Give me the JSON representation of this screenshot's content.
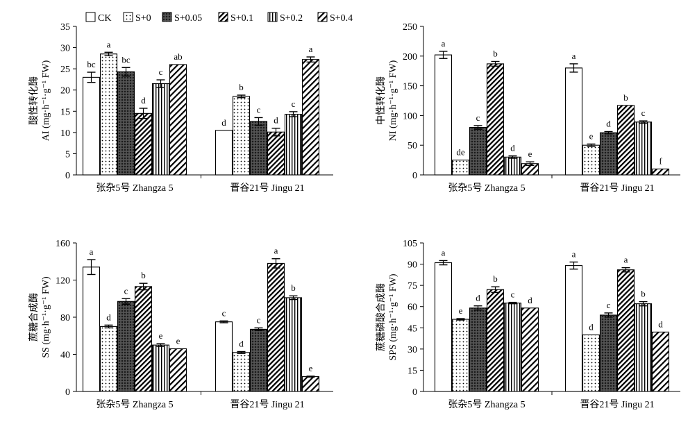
{
  "colors": {
    "ink": "#000000",
    "background": "#ffffff"
  },
  "legend": [
    {
      "label": "CK",
      "pattern": "white"
    },
    {
      "label": "S+0",
      "pattern": "dots"
    },
    {
      "label": "S+0.05",
      "pattern": "cross"
    },
    {
      "label": "S+0.1",
      "pattern": "diag-dense"
    },
    {
      "label": "S+0.2",
      "pattern": "vertical"
    },
    {
      "label": "S+0.4",
      "pattern": "diag-sparse"
    }
  ],
  "chart_data": [
    {
      "type": "bar",
      "ylabel_cn": "酸性转化酶",
      "ylabel_en": "AI (mg·h⁻¹·g⁻¹ FW)",
      "ylim": [
        0,
        35
      ],
      "yticks": [
        0,
        5,
        10,
        15,
        20,
        25,
        30,
        35
      ],
      "categories": [
        "张杂5号 Zhangza 5",
        "晋谷21号 Jingu 21"
      ],
      "series": [
        {
          "name": "CK",
          "values": [
            23,
            10.5
          ],
          "errors": [
            1.2,
            0
          ],
          "sig": [
            "bc",
            "d"
          ]
        },
        {
          "name": "S+0",
          "values": [
            28.5,
            18.5
          ],
          "errors": [
            0.4,
            0.3
          ],
          "sig": [
            "a",
            "b"
          ]
        },
        {
          "name": "S+0.05",
          "values": [
            24.3,
            12.6
          ],
          "errors": [
            1.0,
            0.9
          ],
          "sig": [
            "bc",
            "c"
          ]
        },
        {
          "name": "S+0.1",
          "values": [
            14.5,
            10.1
          ],
          "errors": [
            1.2,
            0.9
          ],
          "sig": [
            "d",
            "d"
          ]
        },
        {
          "name": "S+0.2",
          "values": [
            21.5,
            14.3
          ],
          "errors": [
            0.9,
            0.6
          ],
          "sig": [
            "c",
            "c"
          ]
        },
        {
          "name": "S+0.4",
          "values": [
            26,
            27.2
          ],
          "errors": [
            0,
            0.6
          ],
          "sig": [
            "ab",
            "a"
          ]
        }
      ]
    },
    {
      "type": "bar",
      "ylabel_cn": "中性转化酶",
      "ylabel_en": "NI (mg·h⁻¹·g⁻¹ FW)",
      "ylim": [
        0,
        250
      ],
      "yticks": [
        0,
        50,
        100,
        150,
        200,
        250
      ],
      "categories": [
        "张杂5号 Zhangza 5",
        "晋谷21号 Jingu 21"
      ],
      "series": [
        {
          "name": "CK",
          "values": [
            202,
            180
          ],
          "errors": [
            6,
            7
          ],
          "sig": [
            "a",
            "a"
          ]
        },
        {
          "name": "S+0",
          "values": [
            25,
            50
          ],
          "errors": [
            0,
            2
          ],
          "sig": [
            "de",
            "e"
          ]
        },
        {
          "name": "S+0.05",
          "values": [
            80,
            71
          ],
          "errors": [
            3,
            2
          ],
          "sig": [
            "c",
            "d"
          ]
        },
        {
          "name": "S+0.1",
          "values": [
            187,
            117
          ],
          "errors": [
            4,
            0
          ],
          "sig": [
            "b",
            "b"
          ]
        },
        {
          "name": "S+0.2",
          "values": [
            30,
            89
          ],
          "errors": [
            2,
            2
          ],
          "sig": [
            "d",
            "c"
          ]
        },
        {
          "name": "S+0.4",
          "values": [
            19,
            10
          ],
          "errors": [
            3,
            0
          ],
          "sig": [
            "e",
            "f"
          ]
        }
      ]
    },
    {
      "type": "bar",
      "ylabel_cn": "蔗糖合成酶",
      "ylabel_en": "SS (mg·h⁻¹·g⁻¹ FW)",
      "ylim": [
        0,
        160
      ],
      "yticks": [
        0,
        40,
        80,
        120,
        160
      ],
      "categories": [
        "张杂5号 Zhangza 5",
        "晋谷21号 Jingu 21"
      ],
      "series": [
        {
          "name": "CK",
          "values": [
            134,
            75
          ],
          "errors": [
            8,
            1
          ],
          "sig": [
            "a",
            "c"
          ]
        },
        {
          "name": "S+0",
          "values": [
            70,
            42
          ],
          "errors": [
            1.5,
            1
          ],
          "sig": [
            "d",
            "d"
          ]
        },
        {
          "name": "S+0.05",
          "values": [
            97,
            67
          ],
          "errors": [
            3,
            1.5
          ],
          "sig": [
            "c",
            "c"
          ]
        },
        {
          "name": "S+0.1",
          "values": [
            113,
            138
          ],
          "errors": [
            3.5,
            5
          ],
          "sig": [
            "b",
            "a"
          ]
        },
        {
          "name": "S+0.2",
          "values": [
            50,
            101
          ],
          "errors": [
            1.5,
            2
          ],
          "sig": [
            "e",
            "b"
          ]
        },
        {
          "name": "S+0.4",
          "values": [
            46,
            16
          ],
          "errors": [
            0,
            0.5
          ],
          "sig": [
            "e",
            "e"
          ]
        }
      ]
    },
    {
      "type": "bar",
      "ylabel_cn": "蔗糖磷酸合成酶",
      "ylabel_en": "SPS (mg·h⁻¹·g⁻¹ FW)",
      "ylim": [
        0,
        105
      ],
      "yticks": [
        0,
        15,
        30,
        45,
        60,
        75,
        90,
        105
      ],
      "categories": [
        "张杂5号 Zhangza 5",
        "晋谷21号 Jingu 21"
      ],
      "series": [
        {
          "name": "CK",
          "values": [
            91,
            89
          ],
          "errors": [
            1.5,
            2.5
          ],
          "sig": [
            "a",
            "a"
          ]
        },
        {
          "name": "S+0",
          "values": [
            51,
            40
          ],
          "errors": [
            0.5,
            0
          ],
          "sig": [
            "e",
            "d"
          ]
        },
        {
          "name": "S+0.05",
          "values": [
            59,
            54
          ],
          "errors": [
            1.5,
            1.5
          ],
          "sig": [
            "d",
            "c"
          ]
        },
        {
          "name": "S+0.1",
          "values": [
            72,
            86
          ],
          "errors": [
            2,
            1.5
          ],
          "sig": [
            "b",
            "a"
          ]
        },
        {
          "name": "S+0.2",
          "values": [
            62.5,
            62
          ],
          "errors": [
            0.5,
            1.5
          ],
          "sig": [
            "c",
            "b"
          ]
        },
        {
          "name": "S+0.4",
          "values": [
            59,
            42
          ],
          "errors": [
            0,
            0
          ],
          "sig": [
            "d",
            "d"
          ]
        }
      ]
    }
  ]
}
